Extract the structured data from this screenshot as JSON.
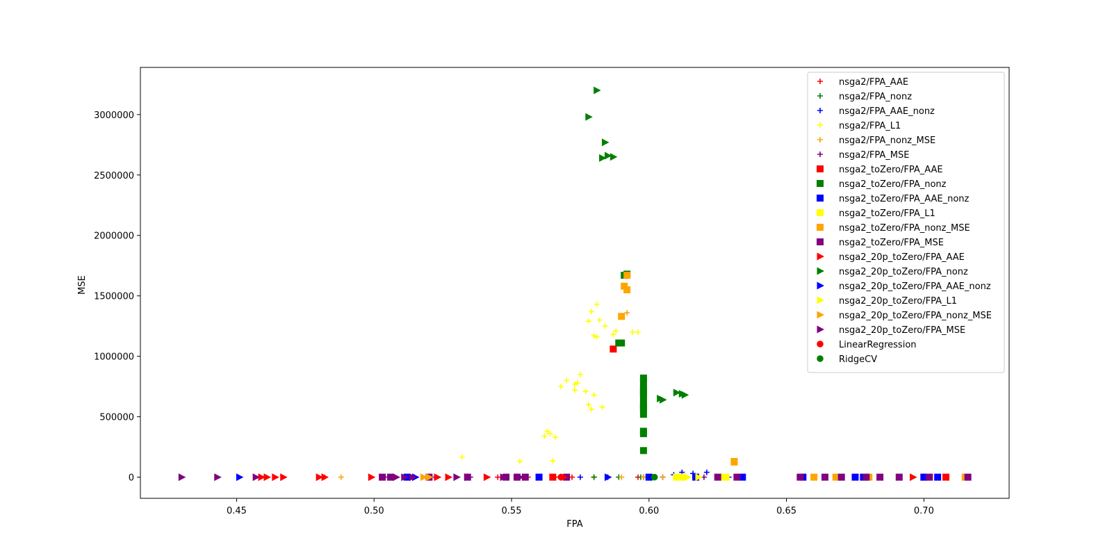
{
  "chart_data": {
    "type": "scatter",
    "title": "",
    "xlabel": "FPA",
    "ylabel": "MSE",
    "xlim": [
      0.415,
      0.731
    ],
    "ylim": [
      -175000,
      3390000
    ],
    "xticks": [
      0.45,
      0.5,
      0.55,
      0.6,
      0.65,
      0.7
    ],
    "xtick_labels": [
      "0.45",
      "0.50",
      "0.55",
      "0.60",
      "0.65",
      "0.70"
    ],
    "yticks": [
      0,
      500000,
      1000000,
      1500000,
      2000000,
      2500000,
      3000000
    ],
    "ytick_labels": [
      "0",
      "500000",
      "1000000",
      "1500000",
      "2000000",
      "2500000",
      "3000000"
    ],
    "grid": false,
    "legend_position": "top-right",
    "colors": {
      "red": "#ff0000",
      "green": "#008000",
      "blue": "#0000ff",
      "yellow": "#ffff00",
      "orange": "#ffa500",
      "purple": "#800080"
    },
    "series": [
      {
        "name": "nsga2/FPA_AAE",
        "marker": "plus",
        "color": "#ff0000",
        "x": [
          0.545,
          0.556,
          0.566,
          0.572,
          0.58,
          0.596
        ],
        "y": [
          0,
          0,
          0,
          0,
          0,
          0
        ]
      },
      {
        "name": "nsga2/FPA_nonz",
        "marker": "plus",
        "color": "#008000",
        "x": [
          0.58,
          0.589,
          0.597
        ],
        "y": [
          0,
          0,
          0
        ]
      },
      {
        "name": "nsga2/FPA_AAE_nonz",
        "marker": "plus",
        "color": "#0000ff",
        "x": [
          0.555,
          0.575,
          0.585,
          0.598,
          0.605,
          0.609,
          0.612,
          0.616,
          0.621,
          0.629
        ],
        "y": [
          0,
          0,
          0,
          0,
          0,
          20000,
          40000,
          30000,
          40000,
          0
        ]
      },
      {
        "name": "nsga2/FPA_L1",
        "marker": "plus",
        "color": "#ffff00",
        "x": [
          0.532,
          0.553,
          0.562,
          0.563,
          0.564,
          0.565,
          0.566,
          0.568,
          0.57,
          0.573,
          0.573,
          0.574,
          0.575,
          0.577,
          0.578,
          0.578,
          0.579,
          0.579,
          0.58,
          0.58,
          0.581,
          0.581,
          0.582,
          0.583,
          0.584,
          0.587,
          0.588,
          0.594,
          0.596
        ],
        "y": [
          165000,
          130000,
          340000,
          380000,
          360000,
          135000,
          330000,
          750000,
          800000,
          720000,
          770000,
          780000,
          850000,
          710000,
          600000,
          1290000,
          560000,
          1370000,
          680000,
          1170000,
          1430000,
          1160000,
          1300000,
          580000,
          1250000,
          1180000,
          1210000,
          1200000,
          1200000
        ]
      },
      {
        "name": "nsga2/FPA_nonz_MSE",
        "marker": "plus",
        "color": "#ffa500",
        "x": [
          0.482,
          0.488,
          0.553,
          0.59,
          0.592,
          0.598,
          0.605
        ],
        "y": [
          0,
          0,
          0,
          0,
          1360000,
          0,
          0
        ]
      },
      {
        "name": "nsga2/FPA_MSE",
        "marker": "plus",
        "color": "#800080",
        "x": [
          0.505,
          0.522,
          0.535,
          0.56,
          0.585,
          0.62
        ],
        "y": [
          0,
          0,
          0,
          0,
          0,
          0
        ]
      },
      {
        "name": "nsga2_toZero/FPA_AAE",
        "marker": "square",
        "color": "#ff0000",
        "x": [
          0.565,
          0.587,
          0.7,
          0.708
        ],
        "y": [
          0,
          1060000,
          0,
          0
        ]
      },
      {
        "name": "nsga2_toZero/FPA_nonz",
        "marker": "square",
        "color": "#008000",
        "x": [
          0.589,
          0.59,
          0.598,
          0.598,
          0.598,
          0.598,
          0.598,
          0.598,
          0.598,
          0.598,
          0.598,
          0.598,
          0.598,
          0.598,
          0.598,
          0.598,
          0.591,
          0.592
        ],
        "y": [
          1110000,
          1110000,
          220000,
          360000,
          380000,
          520000,
          560000,
          600000,
          640000,
          680000,
          720000,
          750000,
          790000,
          820000,
          580000,
          700000,
          1670000,
          1680000
        ]
      },
      {
        "name": "nsga2_toZero/FPA_AAE_nonz",
        "marker": "square",
        "color": "#0000ff",
        "x": [
          0.512,
          0.56,
          0.6,
          0.617,
          0.634,
          0.656,
          0.675,
          0.678,
          0.7,
          0.705
        ],
        "y": [
          0,
          0,
          0,
          0,
          0,
          0,
          0,
          0,
          0,
          0
        ]
      },
      {
        "name": "nsga2_toZero/FPA_L1",
        "marker": "square",
        "color": "#ffff00",
        "x": [
          0.61,
          0.612,
          0.626,
          0.628
        ],
        "y": [
          0,
          0,
          0,
          0
        ]
      },
      {
        "name": "nsga2_toZero/FPA_nonz_MSE",
        "marker": "square",
        "color": "#ffa500",
        "x": [
          0.59,
          0.591,
          0.592,
          0.592,
          0.631,
          0.631,
          0.66,
          0.668,
          0.68,
          0.715
        ],
        "y": [
          1330000,
          1580000,
          1550000,
          1670000,
          130000,
          125000,
          0,
          0,
          0,
          0
        ]
      },
      {
        "name": "nsga2_toZero/FPA_MSE",
        "marker": "square",
        "color": "#800080",
        "x": [
          0.503,
          0.506,
          0.52,
          0.534,
          0.548,
          0.552,
          0.555,
          0.57,
          0.625,
          0.632,
          0.655,
          0.664,
          0.67,
          0.679,
          0.684,
          0.691,
          0.702,
          0.716
        ],
        "y": [
          0,
          0,
          0,
          0,
          0,
          0,
          0,
          0,
          0,
          0,
          0,
          0,
          0,
          0,
          0,
          0,
          0,
          0
        ]
      },
      {
        "name": "nsga2_20p_toZero/FPA_AAE",
        "marker": "triangle",
        "color": "#ff0000",
        "x": [
          0.459,
          0.461,
          0.464,
          0.467,
          0.48,
          0.482,
          0.499,
          0.523,
          0.527,
          0.541,
          0.569,
          0.696
        ],
        "y": [
          0,
          0,
          0,
          0,
          0,
          0,
          0,
          0,
          0,
          0,
          0,
          0
        ]
      },
      {
        "name": "nsga2_20p_toZero/FPA_nonz",
        "marker": "triangle",
        "color": "#008000",
        "x": [
          0.578,
          0.581,
          0.583,
          0.584,
          0.585,
          0.587,
          0.604,
          0.605,
          0.61,
          0.612,
          0.613
        ],
        "y": [
          2980000,
          3200000,
          2640000,
          2770000,
          2660000,
          2650000,
          650000,
          640000,
          700000,
          690000,
          680000
        ]
      },
      {
        "name": "nsga2_20p_toZero/FPA_AAE_nonz",
        "marker": "triangle",
        "color": "#0000ff",
        "x": [
          0.451,
          0.515,
          0.585
        ],
        "y": [
          0,
          0,
          0
        ]
      },
      {
        "name": "nsga2_20p_toZero/FPA_L1",
        "marker": "triangle",
        "color": "#ffff00",
        "x": [
          0.61,
          0.614,
          0.618
        ],
        "y": [
          0,
          0,
          0
        ]
      },
      {
        "name": "nsga2_20p_toZero/FPA_nonz_MSE",
        "marker": "triangle",
        "color": "#ffa500",
        "x": [
          0.518,
          0.52
        ],
        "y": [
          0,
          0
        ]
      },
      {
        "name": "nsga2_20p_toZero/FPA_MSE",
        "marker": "triangle",
        "color": "#800080",
        "x": [
          0.43,
          0.443,
          0.457,
          0.508,
          0.511,
          0.514,
          0.53,
          0.534,
          0.547,
          0.553
        ],
        "y": [
          0,
          0,
          0,
          0,
          0,
          0,
          0,
          0,
          0,
          0
        ]
      },
      {
        "name": "LinearRegression",
        "marker": "circle",
        "color": "#ff0000",
        "x": [
          0.568
        ],
        "y": [
          0
        ]
      },
      {
        "name": "RidgeCV",
        "marker": "circle",
        "color": "#008000",
        "x": [
          0.602
        ],
        "y": [
          0
        ]
      }
    ]
  }
}
